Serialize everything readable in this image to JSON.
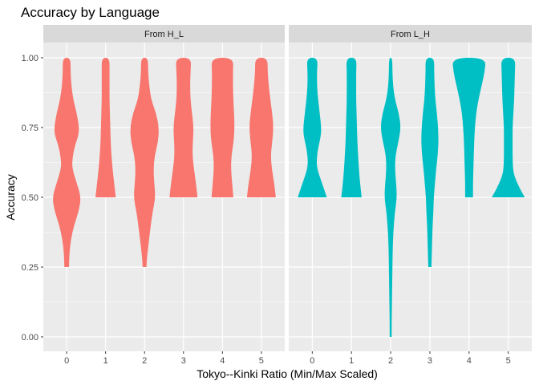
{
  "chart_data": {
    "type": "violin",
    "title": "Accuracy by Language",
    "xlabel": "Tokyo--Kinki Ratio (Min/Max Scaled)",
    "ylabel": "Accuracy",
    "ylim": [
      -0.06,
      1.06
    ],
    "y_ticks": [
      0.0,
      0.25,
      0.5,
      0.75,
      1.0
    ],
    "y_tick_labels": [
      "0.00",
      "0.25",
      "0.50",
      "0.75",
      "1.00"
    ],
    "categories": [
      "0",
      "1",
      "2",
      "3",
      "4",
      "5"
    ],
    "grid": true,
    "legend": "none",
    "panels": [
      {
        "name": "From H_L",
        "color": "#F8766D",
        "violins": [
          {
            "category": "0",
            "profile": [
              [
                0.25,
                0.12
              ],
              [
                0.3,
                0.14
              ],
              [
                0.35,
                0.22
              ],
              [
                0.4,
                0.38
              ],
              [
                0.45,
                0.62
              ],
              [
                0.5,
                0.74
              ],
              [
                0.55,
                0.52
              ],
              [
                0.6,
                0.3
              ],
              [
                0.63,
                0.28
              ],
              [
                0.68,
                0.4
              ],
              [
                0.72,
                0.6
              ],
              [
                0.75,
                0.64
              ],
              [
                0.8,
                0.52
              ],
              [
                0.85,
                0.34
              ],
              [
                0.9,
                0.24
              ],
              [
                0.95,
                0.2
              ],
              [
                1.0,
                0.2
              ]
            ]
          },
          {
            "category": "1",
            "profile": [
              [
                0.5,
                0.52
              ],
              [
                0.55,
                0.44
              ],
              [
                0.6,
                0.36
              ],
              [
                0.65,
                0.3
              ],
              [
                0.7,
                0.26
              ],
              [
                0.75,
                0.24
              ],
              [
                0.8,
                0.22
              ],
              [
                0.85,
                0.2
              ],
              [
                0.9,
                0.2
              ],
              [
                0.95,
                0.2
              ],
              [
                1.0,
                0.2
              ]
            ]
          },
          {
            "category": "2",
            "profile": [
              [
                0.25,
                0.1
              ],
              [
                0.28,
                0.12
              ],
              [
                0.33,
                0.2
              ],
              [
                0.4,
                0.32
              ],
              [
                0.45,
                0.42
              ],
              [
                0.5,
                0.56
              ],
              [
                0.55,
                0.5
              ],
              [
                0.6,
                0.46
              ],
              [
                0.65,
                0.52
              ],
              [
                0.7,
                0.7
              ],
              [
                0.75,
                0.74
              ],
              [
                0.8,
                0.6
              ],
              [
                0.85,
                0.34
              ],
              [
                0.9,
                0.24
              ],
              [
                0.95,
                0.18
              ],
              [
                1.0,
                0.18
              ]
            ]
          },
          {
            "category": "3",
            "profile": [
              [
                0.5,
                0.72
              ],
              [
                0.55,
                0.64
              ],
              [
                0.6,
                0.54
              ],
              [
                0.65,
                0.46
              ],
              [
                0.7,
                0.48
              ],
              [
                0.75,
                0.52
              ],
              [
                0.8,
                0.44
              ],
              [
                0.85,
                0.36
              ],
              [
                0.9,
                0.34
              ],
              [
                0.95,
                0.36
              ],
              [
                1.0,
                0.4
              ]
            ]
          },
          {
            "category": "4",
            "profile": [
              [
                0.5,
                0.56
              ],
              [
                0.55,
                0.5
              ],
              [
                0.6,
                0.44
              ],
              [
                0.65,
                0.46
              ],
              [
                0.7,
                0.58
              ],
              [
                0.75,
                0.62
              ],
              [
                0.8,
                0.6
              ],
              [
                0.85,
                0.56
              ],
              [
                0.9,
                0.54
              ],
              [
                0.95,
                0.54
              ],
              [
                1.0,
                0.56
              ]
            ]
          },
          {
            "category": "5",
            "profile": [
              [
                0.5,
                0.74
              ],
              [
                0.55,
                0.66
              ],
              [
                0.6,
                0.54
              ],
              [
                0.65,
                0.48
              ],
              [
                0.7,
                0.56
              ],
              [
                0.75,
                0.62
              ],
              [
                0.8,
                0.56
              ],
              [
                0.85,
                0.46
              ],
              [
                0.9,
                0.38
              ],
              [
                0.95,
                0.32
              ],
              [
                1.0,
                0.32
              ]
            ]
          }
        ]
      },
      {
        "name": "From L_H",
        "color": "#00BFC4",
        "violins": [
          {
            "category": "0",
            "profile": [
              [
                0.5,
                0.74
              ],
              [
                0.53,
                0.6
              ],
              [
                0.57,
                0.4
              ],
              [
                0.6,
                0.26
              ],
              [
                0.63,
                0.22
              ],
              [
                0.67,
                0.28
              ],
              [
                0.72,
                0.44
              ],
              [
                0.75,
                0.46
              ],
              [
                0.8,
                0.38
              ],
              [
                0.85,
                0.3
              ],
              [
                0.9,
                0.24
              ],
              [
                0.95,
                0.24
              ],
              [
                1.0,
                0.28
              ]
            ]
          },
          {
            "category": "1",
            "profile": [
              [
                0.5,
                0.52
              ],
              [
                0.55,
                0.44
              ],
              [
                0.6,
                0.38
              ],
              [
                0.65,
                0.34
              ],
              [
                0.7,
                0.3
              ],
              [
                0.75,
                0.28
              ],
              [
                0.8,
                0.26
              ],
              [
                0.85,
                0.24
              ],
              [
                0.9,
                0.24
              ],
              [
                0.95,
                0.24
              ],
              [
                1.0,
                0.26
              ]
            ]
          },
          {
            "category": "2",
            "profile": [
              [
                0.0,
                0.05
              ],
              [
                0.05,
                0.05
              ],
              [
                0.1,
                0.06
              ],
              [
                0.15,
                0.07
              ],
              [
                0.2,
                0.08
              ],
              [
                0.25,
                0.09
              ],
              [
                0.3,
                0.1
              ],
              [
                0.35,
                0.12
              ],
              [
                0.4,
                0.16
              ],
              [
                0.45,
                0.22
              ],
              [
                0.5,
                0.32
              ],
              [
                0.55,
                0.28
              ],
              [
                0.6,
                0.22
              ],
              [
                0.65,
                0.24
              ],
              [
                0.7,
                0.4
              ],
              [
                0.75,
                0.52
              ],
              [
                0.8,
                0.42
              ],
              [
                0.85,
                0.22
              ],
              [
                0.9,
                0.12
              ],
              [
                0.95,
                0.09
              ],
              [
                1.0,
                0.08
              ]
            ]
          },
          {
            "category": "3",
            "profile": [
              [
                0.25,
                0.08
              ],
              [
                0.3,
                0.1
              ],
              [
                0.35,
                0.12
              ],
              [
                0.4,
                0.14
              ],
              [
                0.45,
                0.18
              ],
              [
                0.5,
                0.2
              ],
              [
                0.55,
                0.26
              ],
              [
                0.6,
                0.32
              ],
              [
                0.65,
                0.4
              ],
              [
                0.7,
                0.44
              ],
              [
                0.75,
                0.42
              ],
              [
                0.8,
                0.36
              ],
              [
                0.85,
                0.28
              ],
              [
                0.9,
                0.24
              ],
              [
                0.95,
                0.22
              ],
              [
                1.0,
                0.22
              ]
            ]
          },
          {
            "category": "4",
            "profile": [
              [
                0.5,
                0.2
              ],
              [
                0.55,
                0.2
              ],
              [
                0.6,
                0.22
              ],
              [
                0.65,
                0.24
              ],
              [
                0.7,
                0.26
              ],
              [
                0.75,
                0.3
              ],
              [
                0.8,
                0.36
              ],
              [
                0.85,
                0.48
              ],
              [
                0.9,
                0.64
              ],
              [
                0.95,
                0.8
              ],
              [
                1.0,
                0.86
              ]
            ]
          },
          {
            "category": "5",
            "profile": [
              [
                0.5,
                0.84
              ],
              [
                0.53,
                0.6
              ],
              [
                0.57,
                0.34
              ],
              [
                0.6,
                0.24
              ],
              [
                0.65,
                0.22
              ],
              [
                0.7,
                0.22
              ],
              [
                0.75,
                0.22
              ],
              [
                0.8,
                0.26
              ],
              [
                0.85,
                0.3
              ],
              [
                0.9,
                0.32
              ],
              [
                0.95,
                0.34
              ],
              [
                1.0,
                0.36
              ]
            ]
          }
        ]
      }
    ]
  }
}
